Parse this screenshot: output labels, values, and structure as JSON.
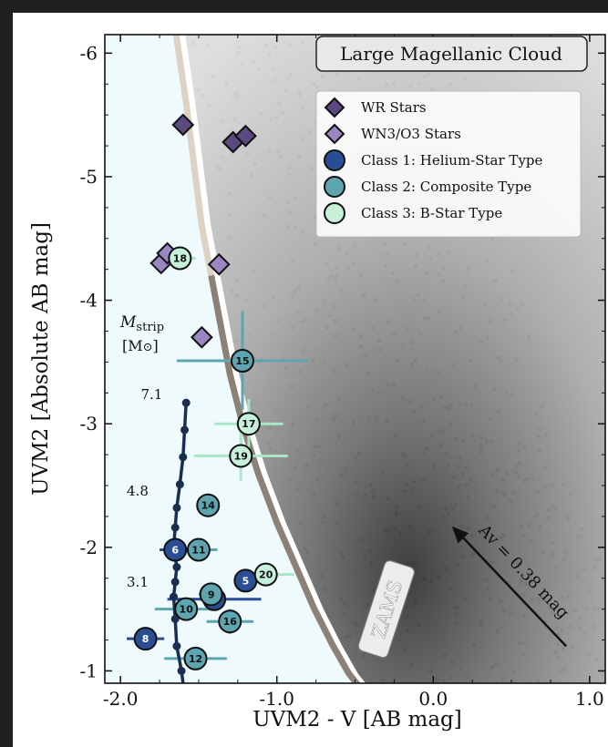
{
  "chart_data": {
    "type": "scatter",
    "title": "Large Magellanic Cloud",
    "xlabel": "UVM2 - V [AB mag]",
    "ylabel": "UVM2 [Absolute AB mag]",
    "xlim": [
      -2.1,
      1.1
    ],
    "ylim": [
      -0.9,
      -6.15
    ],
    "x_ticks": [
      -2.0,
      -1.0,
      0.0,
      1.0
    ],
    "x_tick_labels": [
      "-2.0",
      "-1.0",
      "0.0",
      "1.0"
    ],
    "y_ticks": [
      -6,
      -5,
      -4,
      -3,
      -2,
      -1
    ],
    "y_tick_labels": [
      "-6",
      "-5",
      "-4",
      "-3",
      "-2",
      "-1"
    ],
    "legend_position": "top-right",
    "legend": [
      {
        "label": "WR Stars",
        "marker": "diamond",
        "color": "#5b4a82"
      },
      {
        "label": "WN3/O3 Stars",
        "marker": "diamond",
        "color": "#9a86c3"
      },
      {
        "label": "Class 1: Helium-Star Type",
        "marker": "circle",
        "color": "#2a4d94"
      },
      {
        "label": "Class 2: Composite Type",
        "marker": "circle",
        "color": "#5fa5b0"
      },
      {
        "label": "Class 3: B-Star Type",
        "marker": "circle",
        "color": "#c6f0da"
      }
    ],
    "wr_stars": [
      {
        "x": -1.6,
        "y": -5.42
      },
      {
        "x": -1.28,
        "y": -5.28
      },
      {
        "x": -1.2,
        "y": -5.33
      }
    ],
    "wn3o3_stars": [
      {
        "x": -1.74,
        "y": -4.3
      },
      {
        "x": -1.7,
        "y": -4.38
      },
      {
        "x": -1.37,
        "y": -4.29
      },
      {
        "x": -1.48,
        "y": -3.7
      }
    ],
    "class_stars": [
      {
        "id": "5",
        "cls": 1,
        "x": -1.2,
        "y": -1.73,
        "xerr": 0.07,
        "yerr": 0.04
      },
      {
        "id": "6",
        "cls": 1,
        "x": -1.65,
        "y": -1.98,
        "xerr": 0.1,
        "yerr": 0.05
      },
      {
        "id": "7",
        "cls": 1,
        "x": -1.4,
        "y": -1.58,
        "xerr": 0.3,
        "yerr": 0.05
      },
      {
        "id": "8",
        "cls": 1,
        "x": -1.84,
        "y": -1.26,
        "xerr": 0.12,
        "yerr": 0.05
      },
      {
        "id": "9",
        "cls": 2,
        "x": -1.42,
        "y": -1.62,
        "xerr": 0.08,
        "yerr": 0.05
      },
      {
        "id": "10",
        "cls": 2,
        "x": -1.58,
        "y": -1.5,
        "xerr": 0.2,
        "yerr": 0.05
      },
      {
        "id": "11",
        "cls": 2,
        "x": -1.5,
        "y": -1.98,
        "xerr": 0.12,
        "yerr": 0.05
      },
      {
        "id": "12",
        "cls": 2,
        "x": -1.52,
        "y": -1.1,
        "xerr": 0.2,
        "yerr": 0.05
      },
      {
        "id": "14",
        "cls": 2,
        "x": -1.44,
        "y": -2.34,
        "xerr": 0.07,
        "yerr": 0.05
      },
      {
        "id": "15",
        "cls": 2,
        "x": -1.22,
        "y": -3.51,
        "xerr": 0.42,
        "yerr": 0.4
      },
      {
        "id": "16",
        "cls": 2,
        "x": -1.3,
        "y": -1.4,
        "xerr": 0.15,
        "yerr": 0.1
      },
      {
        "id": "17",
        "cls": 3,
        "x": -1.18,
        "y": -3.0,
        "xerr": 0.22,
        "yerr": 0.2
      },
      {
        "id": "18",
        "cls": 3,
        "x": -1.62,
        "y": -4.34,
        "xerr": 0.1,
        "yerr": 0.05
      },
      {
        "id": "19",
        "cls": 3,
        "x": -1.23,
        "y": -2.74,
        "xerr": 0.3,
        "yerr": 0.2
      },
      {
        "id": "20",
        "cls": 3,
        "x": -1.07,
        "y": -1.78,
        "xerr": 0.18,
        "yerr": 0.05
      }
    ],
    "stripped_track": {
      "x": [
        -1.58,
        -1.59,
        -1.6,
        -1.62,
        -1.64,
        -1.65,
        -1.66,
        -1.64,
        -1.65,
        -1.66,
        -1.65,
        -1.64,
        -1.61,
        -1.6
      ],
      "y": [
        -3.17,
        -2.95,
        -2.73,
        -2.51,
        -2.32,
        -2.16,
        -2.0,
        -1.84,
        -1.72,
        -1.6,
        -1.42,
        -1.2,
        -1.0,
        -0.9
      ],
      "dots_index": [
        0,
        1,
        2,
        3,
        4,
        5,
        6,
        7,
        8,
        9,
        10,
        11,
        12
      ]
    },
    "mass_label_title": "M",
    "mass_label_sub": "strip",
    "mass_label_unit": "[M",
    "mass_label_unit_close": "]",
    "mass_labels": [
      {
        "text": "7.1",
        "x": -1.87,
        "y": -3.2
      },
      {
        "text": "4.8",
        "x": -1.96,
        "y": -2.42
      },
      {
        "text": "3.1",
        "x": -1.96,
        "y": -1.68
      }
    ],
    "zams_label": "ZAMS",
    "zams_curve": {
      "x": [
        -1.65,
        -1.58,
        -1.52,
        -1.48,
        -1.42,
        -1.36,
        -1.3,
        -1.22,
        -1.12,
        -1.0,
        -0.88,
        -0.76,
        -0.64,
        -0.54,
        -0.46
      ],
      "y": [
        -6.2,
        -5.6,
        -5.0,
        -4.6,
        -4.2,
        -3.8,
        -3.4,
        -3.0,
        -2.6,
        -2.2,
        -1.85,
        -1.5,
        -1.2,
        -0.98,
        -0.85
      ],
      "faded_above_y": -4.42
    },
    "extinction_arrow": {
      "label": "Av = 0.38 mag",
      "x0": 0.85,
      "y0": -1.2,
      "x1": 0.12,
      "y1": -2.17
    }
  }
}
